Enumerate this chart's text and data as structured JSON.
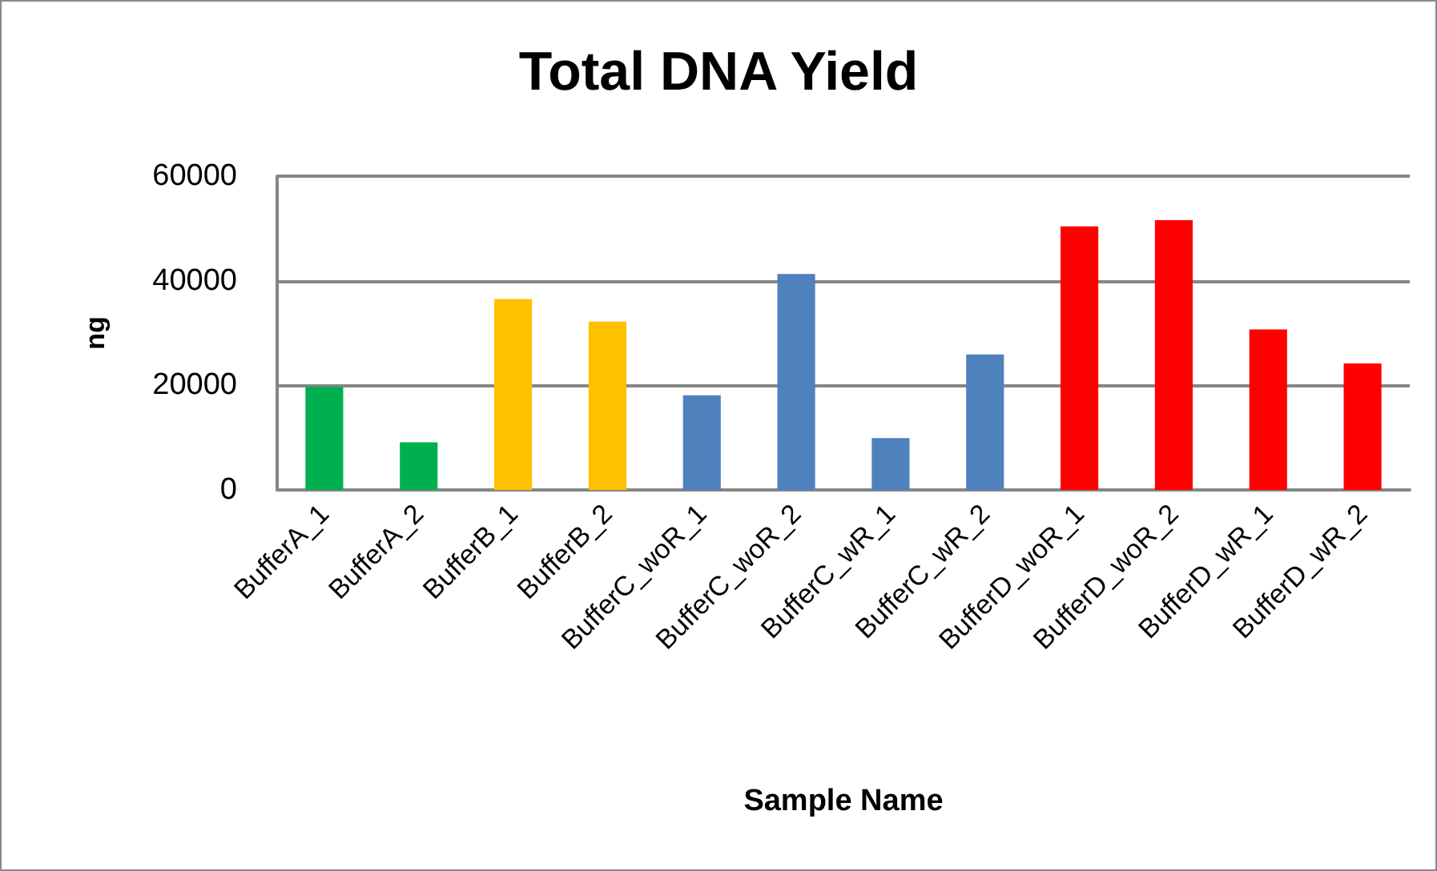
{
  "chart_data": {
    "type": "bar",
    "title": "Total DNA Yield",
    "xlabel": "Sample Name",
    "ylabel": "ng",
    "categories": [
      "BufferA_1",
      "BufferA_2",
      "BufferB_1",
      "BufferB_2",
      "BufferC_woR_1",
      "BufferC_woR_2",
      "BufferC_wR_1",
      "BufferC_wR_2",
      "BufferD_woR_1",
      "BufferD_woR_2",
      "BufferD_wR_1",
      "BufferD_wR_2"
    ],
    "values": [
      19700,
      9100,
      36500,
      32200,
      18100,
      41300,
      9900,
      25900,
      50400,
      51600,
      30700,
      24200
    ],
    "colors": [
      "#00b050",
      "#00b050",
      "#ffc000",
      "#ffc000",
      "#4f81bd",
      "#4f81bd",
      "#4f81bd",
      "#4f81bd",
      "#ff0000",
      "#ff0000",
      "#ff0000",
      "#ff0000"
    ],
    "ylim": [
      0,
      60000
    ],
    "yticks": [
      0,
      20000,
      40000,
      60000
    ],
    "grid": "y"
  }
}
